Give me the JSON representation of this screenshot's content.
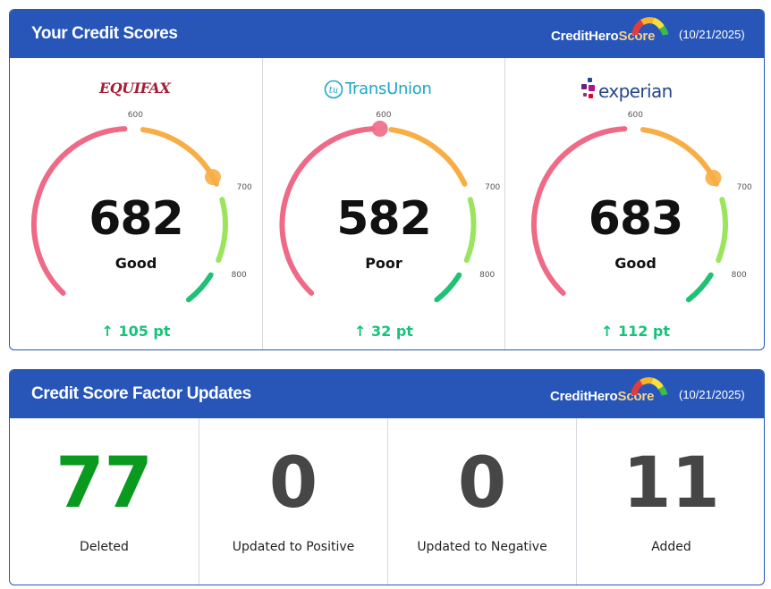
{
  "scores_card": {
    "title": "Your Credit Scores",
    "brand_main": "CreditHero",
    "brand_accent": "Score",
    "date": "(10/21/2025)",
    "gauge_colors": {
      "low": "#ee6a86",
      "mid": "#f8ad45",
      "high": "#9be55e",
      "top": "#1fc274"
    },
    "tick_labels": [
      "600",
      "700",
      "800"
    ],
    "bureaus": [
      {
        "name_main": "EQUIFAX",
        "name_accent": "",
        "score": "682",
        "rating": "Good",
        "change": "105 pt",
        "score_num": 682,
        "marker_color": "#f8ad45"
      },
      {
        "name_main": "TransUnion",
        "name_accent": "tu",
        "score": "582",
        "rating": "Poor",
        "change": "32 pt",
        "score_num": 582,
        "marker_color": "#ee6a86"
      },
      {
        "name_main": "experian",
        "name_accent": "",
        "score": "683",
        "rating": "Good",
        "change": "112 pt",
        "score_num": 683,
        "marker_color": "#f8ad45"
      }
    ]
  },
  "factors_card": {
    "title": "Credit Score Factor Updates",
    "brand_main": "CreditHero",
    "brand_accent": "Score",
    "date": "(10/21/2025)",
    "items": [
      {
        "value": "77",
        "label": "Deleted",
        "color": "#0a9a1e"
      },
      {
        "value": "0",
        "label": "Updated to Positive",
        "color": "#464646"
      },
      {
        "value": "0",
        "label": "Updated to Negative",
        "color": "#464646"
      },
      {
        "value": "11",
        "label": "Added",
        "color": "#464646"
      }
    ]
  }
}
